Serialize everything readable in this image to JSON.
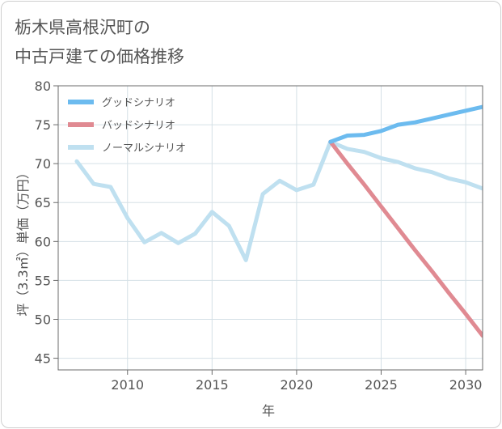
{
  "title": {
    "line1": "栃木県高根沢町の",
    "line2": "中古戸建ての価格推移"
  },
  "colors": {
    "good": "#6cbbef",
    "bad": "#e08a92",
    "normal": "#bfe0f0",
    "grid": "#d5e0e6",
    "axis": "#6b6b6b",
    "text": "#555555"
  },
  "chart_data": {
    "type": "line",
    "title": "栃木県高根沢町の中古戸建ての価格推移",
    "xlabel": "年",
    "ylabel": "坪（3.3㎡）単価（万円）",
    "xlim": [
      2005.9,
      2031
    ],
    "ylim": [
      43.5,
      80
    ],
    "xticks": [
      2010,
      2015,
      2020,
      2025,
      2030
    ],
    "yticks": [
      45,
      50,
      55,
      60,
      65,
      70,
      75,
      80
    ],
    "legend_position": "top-left",
    "series": [
      {
        "name": "グッドシナリオ",
        "key": "good",
        "x": [
          2022,
          2023,
          2024,
          2025,
          2026,
          2027,
          2028,
          2029,
          2030,
          2031
        ],
        "values": [
          72.8,
          73.6,
          73.7,
          74.2,
          75.0,
          75.3,
          75.8,
          76.3,
          76.8,
          77.3
        ]
      },
      {
        "name": "バッドシナリオ",
        "key": "bad",
        "x": [
          2022,
          2023,
          2024,
          2025,
          2026,
          2027,
          2028,
          2029,
          2030,
          2031
        ],
        "values": [
          72.8,
          70.0,
          67.3,
          64.5,
          61.7,
          58.9,
          56.2,
          53.4,
          50.7,
          47.9
        ]
      },
      {
        "name": "ノーマルシナリオ",
        "key": "normal",
        "x": [
          2007,
          2008,
          2009,
          2010,
          2011,
          2012,
          2013,
          2014,
          2015,
          2016,
          2017,
          2018,
          2019,
          2020,
          2021,
          2022,
          2023,
          2024,
          2025,
          2026,
          2027,
          2028,
          2029,
          2030,
          2031
        ],
        "values": [
          70.3,
          67.4,
          67.0,
          63.0,
          59.9,
          61.1,
          59.8,
          61.0,
          63.8,
          62.0,
          57.6,
          66.1,
          67.8,
          66.6,
          67.3,
          72.8,
          71.9,
          71.5,
          70.7,
          70.2,
          69.4,
          68.9,
          68.1,
          67.6,
          66.8
        ]
      }
    ]
  }
}
